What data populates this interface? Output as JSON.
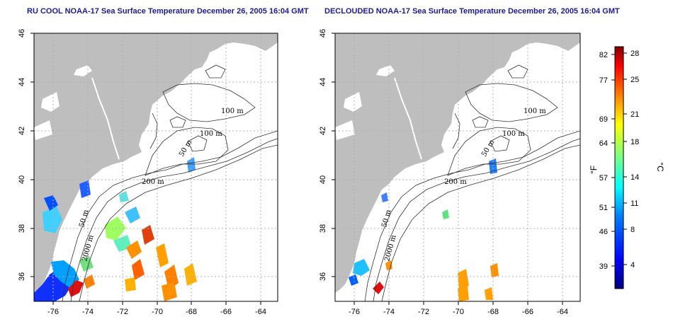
{
  "titles": {
    "left": "RU COOL NOAA-17 Sea Surface Temperature December 26, 2005 16:04 GMT",
    "right": "DECLOUDED NOAA-17 Sea Surface Temperature December 26, 2005 16:04 GMT"
  },
  "axes": {
    "x_ticks": [
      "-76",
      "-74",
      "-72",
      "-70",
      "-68",
      "-66",
      "-64"
    ],
    "y_ticks": [
      "36",
      "38",
      "40",
      "42",
      "44",
      "46"
    ]
  },
  "contour_labels": [
    "100 m",
    "100 m",
    "50 m",
    "200 m",
    "50 m",
    "2000 m"
  ],
  "colorbar": {
    "f_ticks": [
      "82",
      "77",
      "69",
      "64",
      "57",
      "51",
      "46",
      "39"
    ],
    "c_ticks": [
      "28",
      "25",
      "21",
      "18",
      "14",
      "11",
      "8",
      "4"
    ],
    "f_label": "°F",
    "c_label": "°C",
    "colors": [
      "#00007f",
      "#0000ff",
      "#007fff",
      "#00ffff",
      "#7fff7f",
      "#ffff00",
      "#ff7f00",
      "#ff0000",
      "#7f0000"
    ]
  },
  "colors": {
    "land": "#bebebe",
    "ocean": "#ffffff",
    "grid": "#b0b0b0",
    "title": "#1a1aa0"
  }
}
